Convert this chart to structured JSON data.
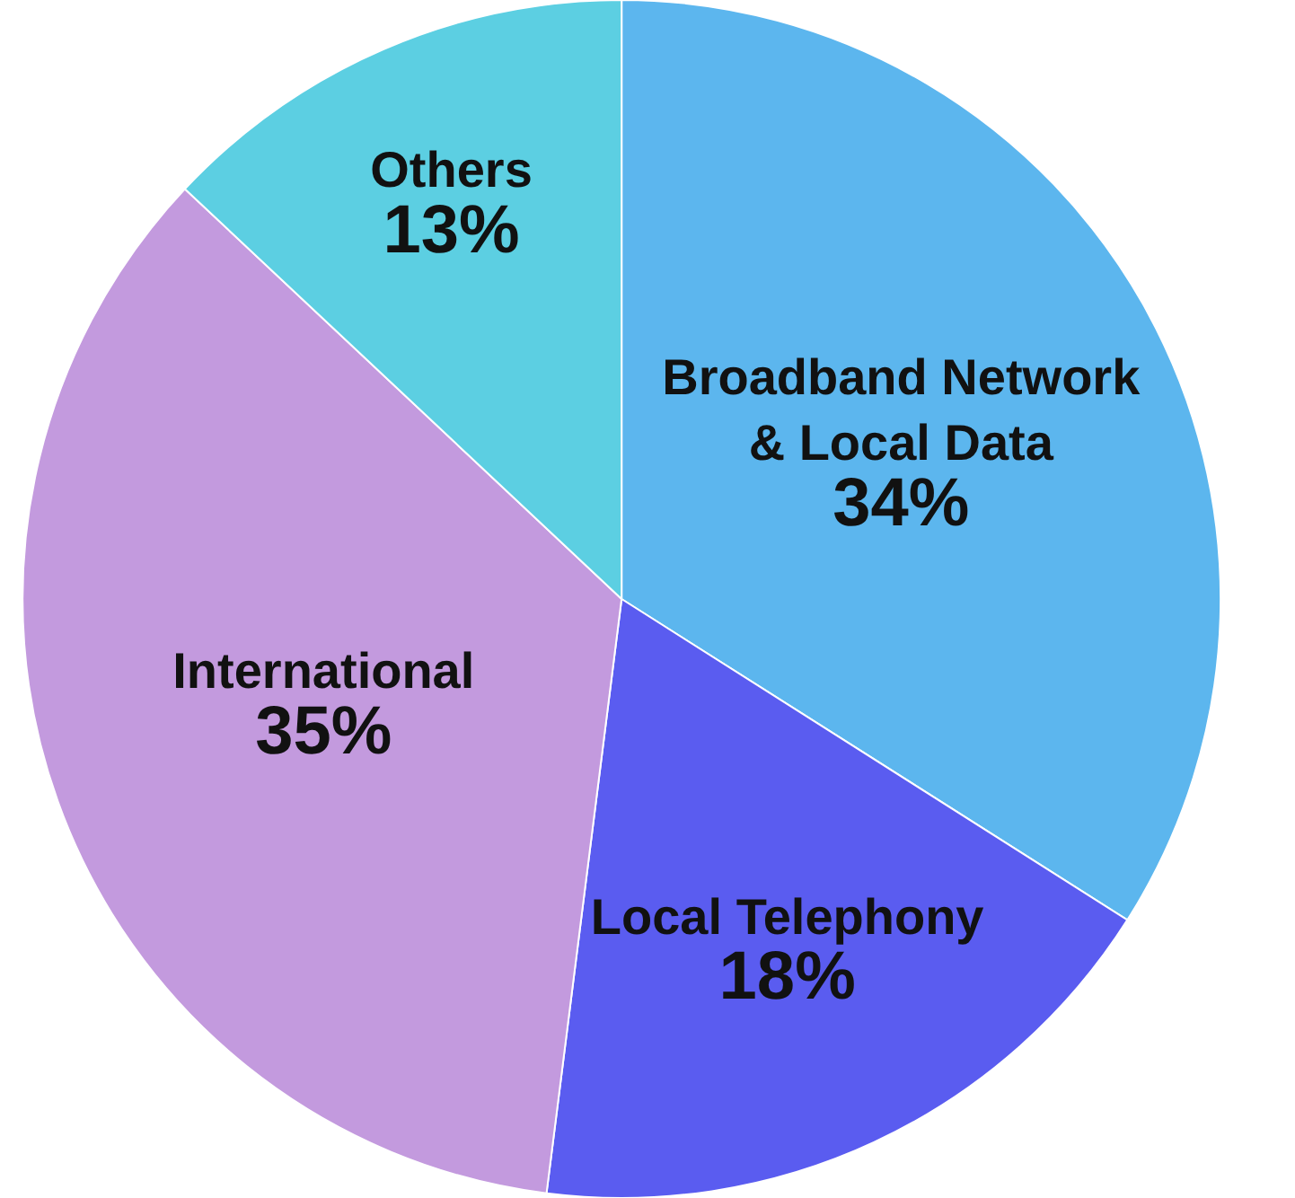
{
  "chart_data": {
    "type": "pie",
    "categories": [
      "Broadband Network & Local Data",
      "Local Telephony",
      "International",
      "Others"
    ],
    "values": [
      34,
      18,
      35,
      13
    ],
    "value_labels": [
      "34%",
      "18%",
      "35%",
      "13%"
    ],
    "colors": [
      "#5cb6ee",
      "#5a5cf0",
      "#c39ade",
      "#5ccfe2"
    ],
    "legend": false
  }
}
